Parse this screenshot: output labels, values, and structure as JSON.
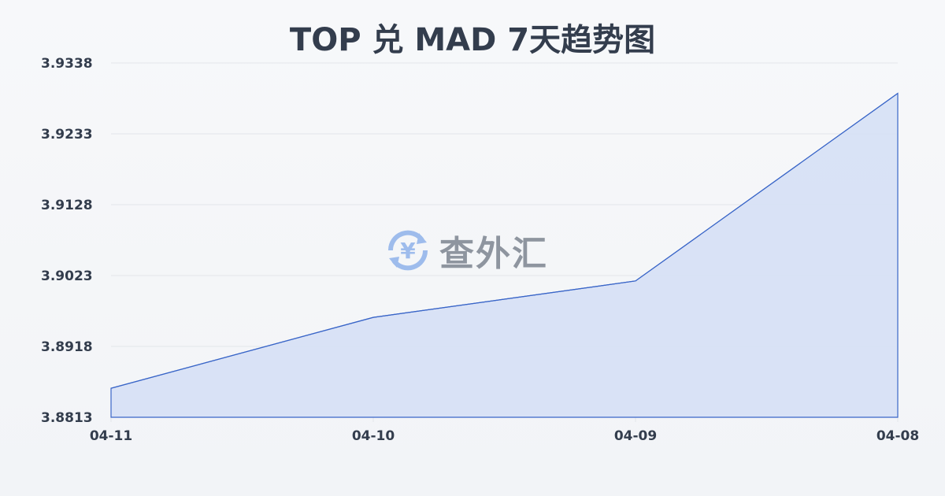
{
  "chart_data": {
    "type": "area",
    "title": "TOP 兑 MAD 7天趋势图",
    "categories": [
      "04-11",
      "04-10",
      "04-09",
      "04-08"
    ],
    "series": [
      {
        "values": [
          3.8856,
          3.8961,
          3.9015,
          3.9293
        ]
      }
    ],
    "yticks": [
      "3.9338",
      "3.9233",
      "3.9128",
      "3.9023",
      "3.8918",
      "3.8813"
    ],
    "ylim": [
      3.8813,
      3.9338
    ],
    "grid": true,
    "colors": {
      "line": "#3a66c8",
      "fill": "#d6e0f5",
      "grid": "#e3e6ea",
      "text": "#333d4d"
    }
  },
  "watermark": {
    "text": "查外汇",
    "icon": "yen-exchange-icon"
  }
}
